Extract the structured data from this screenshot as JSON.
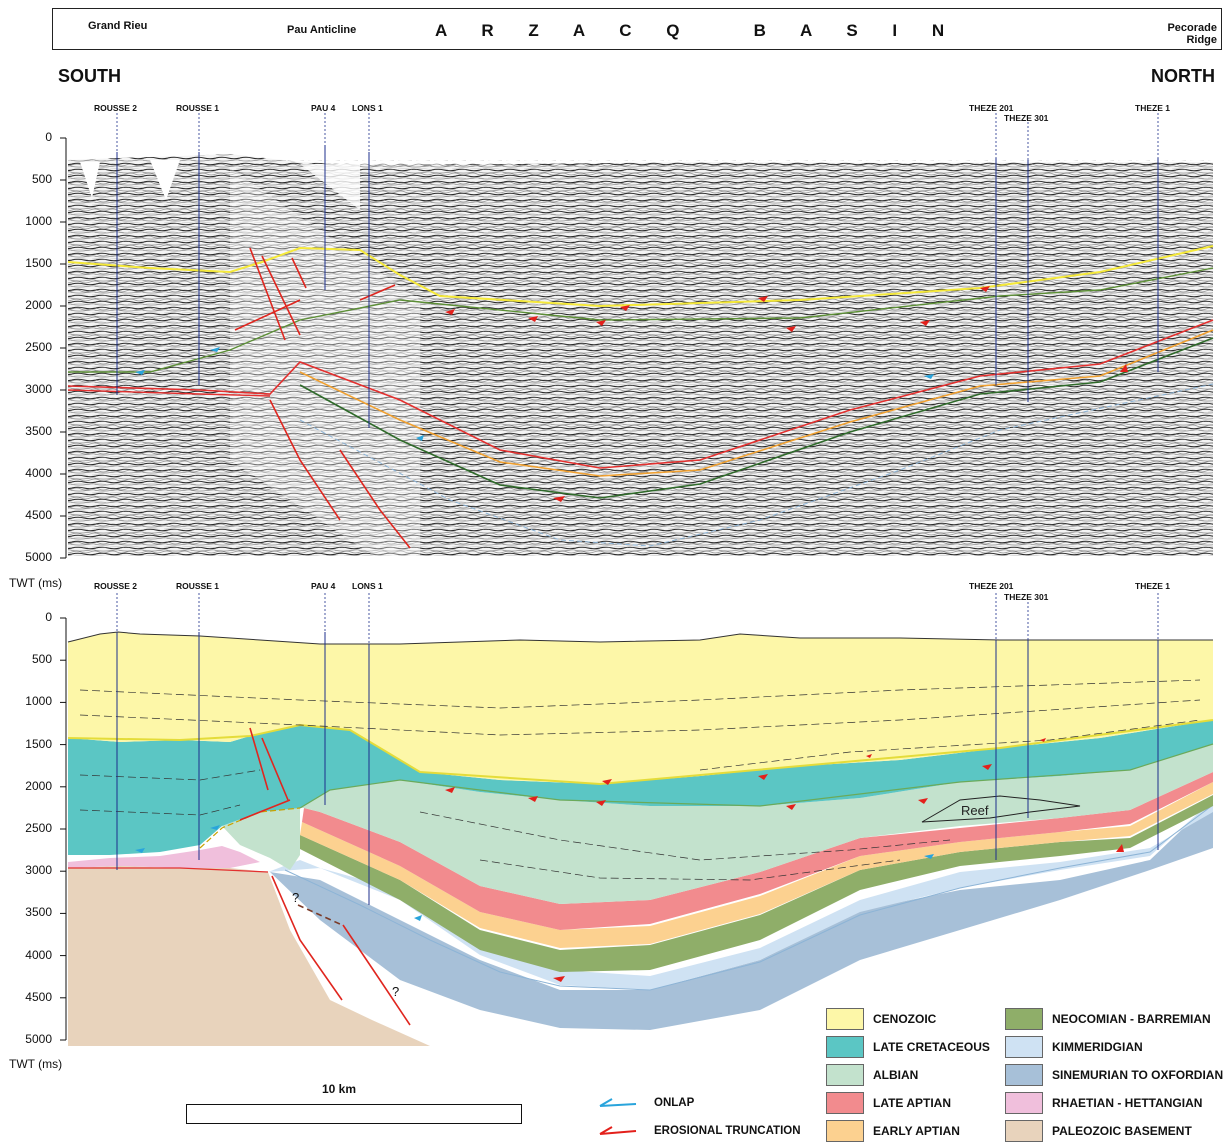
{
  "header": {
    "locations": [
      "Grand Rieu",
      "Pau Anticline"
    ],
    "basin_title": "A R Z A C Q   B A S I N",
    "right_location": [
      "Pecorade",
      "Ridge"
    ]
  },
  "directions": {
    "left": "SOUTH",
    "right": "NORTH"
  },
  "wells": {
    "rousse2": "ROUSSE 2",
    "rousse1": "ROUSSE 1",
    "pau4": "PAU 4",
    "lons1": "LONS 1",
    "theze201": "THEZE 201",
    "theze301": "THEZE 301",
    "theze1": "THEZE 1"
  },
  "axis": {
    "ticks": [
      "0",
      "500",
      "1000",
      "1500",
      "2000",
      "2500",
      "3000",
      "3500",
      "4000",
      "4500",
      "5000"
    ],
    "unit_label": "TWT (ms)"
  },
  "annotations": {
    "reef": "Reef",
    "question": "?"
  },
  "scale": {
    "label": "10 km"
  },
  "symbol_key": {
    "onlap": "ONLAP",
    "erosional_truncation": "EROSIONAL TRUNCATION"
  },
  "legend": [
    {
      "label": "CENOZOIC",
      "color": "#fdf7a8"
    },
    {
      "label": "LATE CRETACEOUS",
      "color": "#5bc6c4"
    },
    {
      "label": "ALBIAN",
      "color": "#c3e2cd"
    },
    {
      "label": "LATE APTIAN",
      "color": "#f28b8e"
    },
    {
      "label": "EARLY APTIAN",
      "color": "#fcd190"
    },
    {
      "label": "NEOCOMIAN - BARREMIAN",
      "color": "#8fae69"
    },
    {
      "label": "KIMMERIDGIAN",
      "color": "#cfe2f3"
    },
    {
      "label": "SINEMURIAN TO OXFORDIAN",
      "color": "#a7c0d8"
    },
    {
      "label": "RHAETIAN - HETTANGIAN",
      "color": "#f0bfdc"
    },
    {
      "label": "PALEOZOIC BASEMENT",
      "color": "#e8d3bc"
    }
  ]
}
